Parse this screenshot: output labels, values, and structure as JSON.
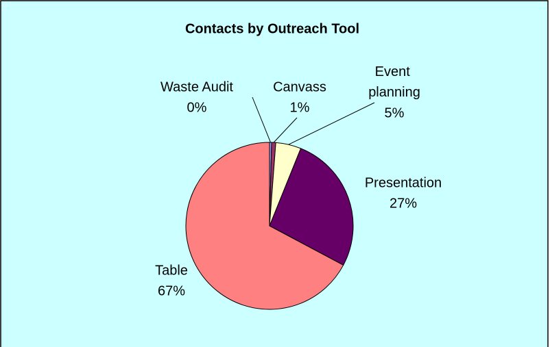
{
  "chart_data": {
    "type": "pie",
    "title": "Contacts by Outreach Tool",
    "categories": [
      "Waste Audit",
      "Canvass",
      "Event planning",
      "Presentation",
      "Table"
    ],
    "values": [
      0.4,
      0.8,
      4.9,
      26.7,
      67.2
    ],
    "value_labels": [
      "0%",
      "1%",
      "5%",
      "27%",
      "67%"
    ],
    "colors": [
      "#9999FF",
      "#993366",
      "#FFFFCC",
      "#660066",
      "#FF8080"
    ]
  }
}
